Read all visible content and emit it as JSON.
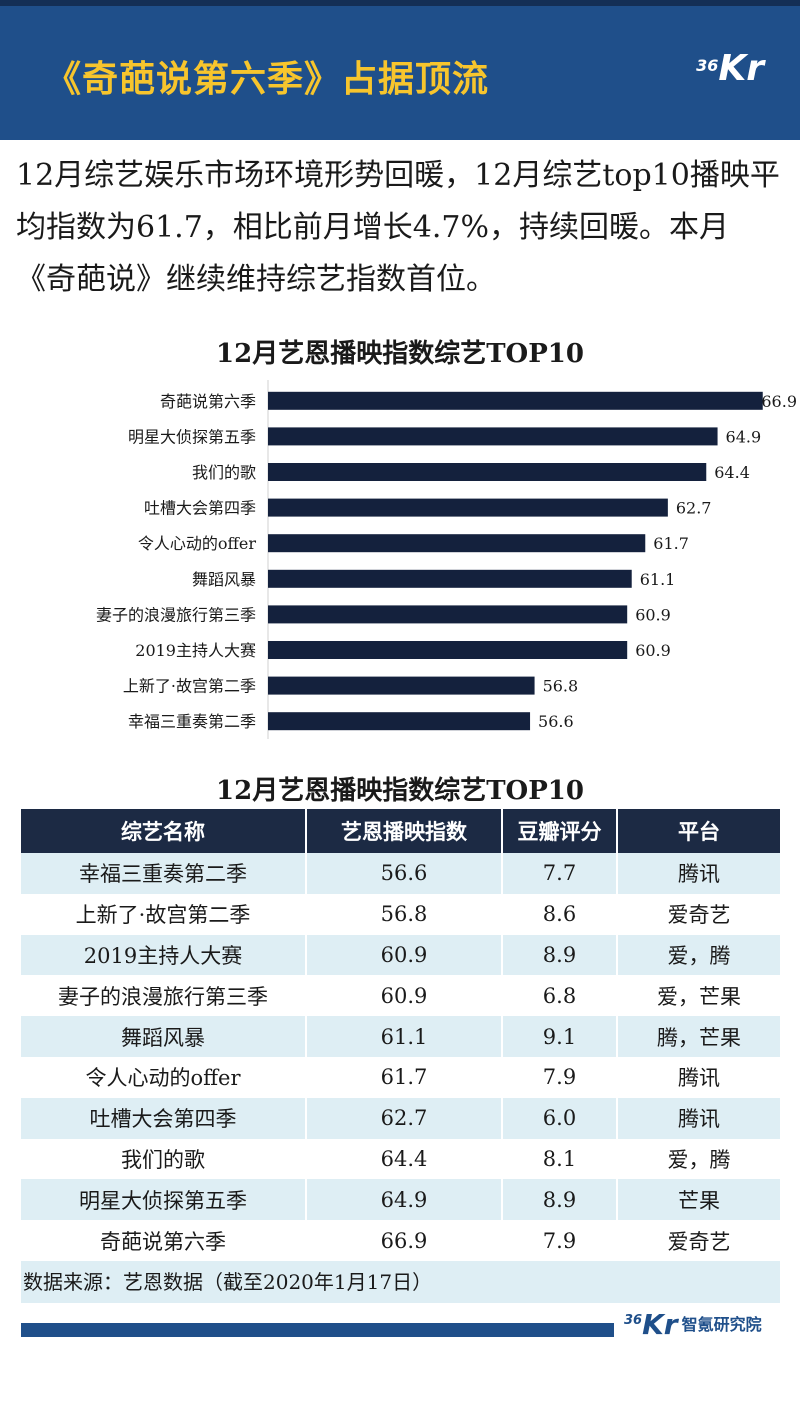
{
  "header": {
    "title": "《奇葩说第六季》占据顶流",
    "logo_num": "36",
    "logo_kr": "Kr"
  },
  "intro": "12月综艺娱乐市场环境形势回暖，12月综艺top10播映平均指数为61.7，相比前月增长4.7%，持续回暖。本月《奇葩说》继续维持综艺指数首位。",
  "chart_data": {
    "type": "bar",
    "orientation": "horizontal",
    "title": "12月艺恩播映指数综艺TOP10",
    "categories": [
      "奇葩说第六季",
      "明星大侦探第五季",
      "我们的歌",
      "吐槽大会第四季",
      "令人心动的offer",
      "舞蹈风暴",
      "妻子的浪漫旅行第三季",
      "2019主持人大赛",
      "上新了·故宫第二季",
      "幸福三重奏第二季"
    ],
    "values": [
      66.9,
      64.9,
      64.4,
      62.7,
      61.7,
      61.1,
      60.9,
      60.9,
      56.8,
      56.6
    ],
    "labels": [
      "66.9",
      "64.9",
      "64.4",
      "62.7",
      "61.7",
      "61.1",
      "60.9",
      "60.9",
      "56.8",
      "56.6"
    ],
    "xlim": [
      45,
      67
    ],
    "bar_color": "#14213d",
    "grid": false
  },
  "table": {
    "title": "12月艺恩播映指数综艺TOP10",
    "headers": [
      "综艺名称",
      "艺恩播映指数",
      "豆瓣评分",
      "平台"
    ],
    "rows": [
      [
        "幸福三重奏第二季",
        "56.6",
        "7.7",
        "腾讯"
      ],
      [
        "上新了·故宫第二季",
        "56.8",
        "8.6",
        "爱奇艺"
      ],
      [
        "2019主持人大赛",
        "60.9",
        "8.9",
        "爱，腾"
      ],
      [
        "妻子的浪漫旅行第三季",
        "60.9",
        "6.8",
        "爱，芒果"
      ],
      [
        "舞蹈风暴",
        "61.1",
        "9.1",
        "腾，芒果"
      ],
      [
        "令人心动的offer",
        "61.7",
        "7.9",
        "腾讯"
      ],
      [
        "吐槽大会第四季",
        "62.7",
        "6.0",
        "腾讯"
      ],
      [
        "我们的歌",
        "64.4",
        "8.1",
        "爱，腾"
      ],
      [
        "明星大侦探第五季",
        "64.9",
        "8.9",
        "芒果"
      ],
      [
        "奇葩说第六季",
        "66.9",
        "7.9",
        "爱奇艺"
      ]
    ],
    "source": "数据来源：艺恩数据（截至2020年1月17日）"
  },
  "footer": {
    "logo_num": "36",
    "logo_kr": "Kr",
    "org": "智氪研究院"
  },
  "colors": {
    "header_bg": "#1f4f8a",
    "title_yellow": "#f7c52d",
    "table_header": "#1c2a44",
    "row_alt": "#deeef4"
  }
}
